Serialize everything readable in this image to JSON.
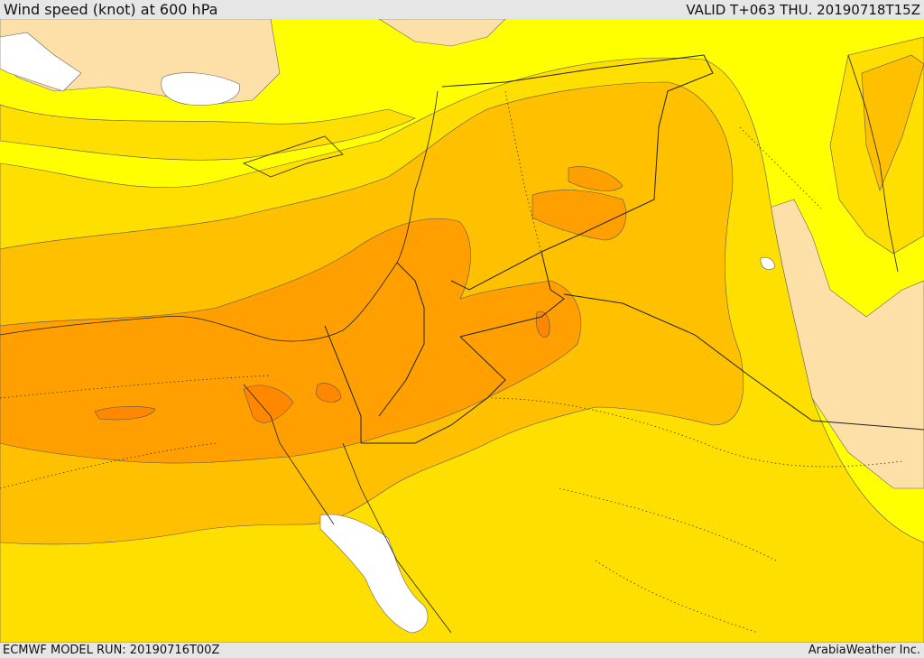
{
  "header": {
    "title": "Wind speed (knot) at 600 hPa",
    "valid_time": "VALID T+063 THU. 20190718T15Z"
  },
  "footer": {
    "model_run": "ECMWF MODEL RUN: 20190716T00Z",
    "credit": "ArabiaWeather Inc."
  },
  "map": {
    "variable": "wind speed at 600 hPa",
    "palette": {
      "no_data": "#ffffff",
      "level_1": "#fde0a8",
      "level_2": "#ffff00",
      "level_3": "#ffdf00",
      "level_4": "#ffc000",
      "level_5": "#ffa000",
      "level_6": "#ff8800"
    },
    "boundary_color": "#222222",
    "region": "Eastern Mediterranean, Egypt, Levant, Iraq, northern Arabia"
  }
}
